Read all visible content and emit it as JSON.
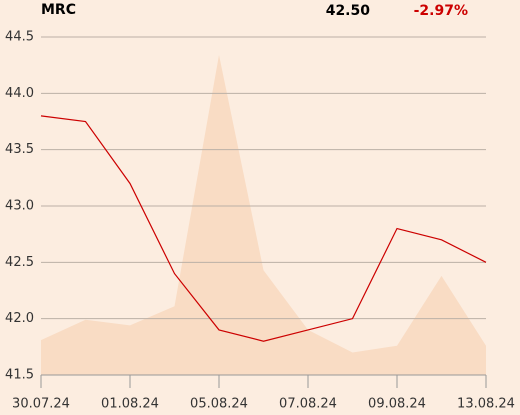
{
  "chart_data": {
    "type": "line",
    "title": "MRC",
    "price": "42.50",
    "change": "-2.97%",
    "change_color": "#cc0000",
    "categories": [
      "30.07.24",
      null,
      "01.08.24",
      null,
      "05.08.24",
      null,
      "07.08.24",
      null,
      "09.08.24",
      null,
      "13.08.24"
    ],
    "series": [
      {
        "type": "line",
        "color": "#cc0000",
        "values": [
          43.8,
          43.75,
          43.2,
          42.4,
          41.9,
          41.8,
          41.9,
          42.0,
          42.8,
          42.7,
          42.5
        ]
      },
      {
        "type": "area",
        "color": "#f9dcc4",
        "values": [
          41.81,
          41.99,
          41.94,
          42.11,
          44.34,
          42.43,
          41.9,
          41.7,
          41.76,
          42.38,
          41.76
        ]
      }
    ],
    "ylim": [
      41.5,
      44.5
    ],
    "yticks": [
      {
        "value": 41.5,
        "label": "41.5"
      },
      {
        "value": 42,
        "label": "42.0"
      },
      42.5,
      {
        "value": 43,
        "label": "43.0"
      },
      43.5,
      {
        "value": 44,
        "label": "44.0"
      },
      44.5
    ],
    "grid": true
  }
}
